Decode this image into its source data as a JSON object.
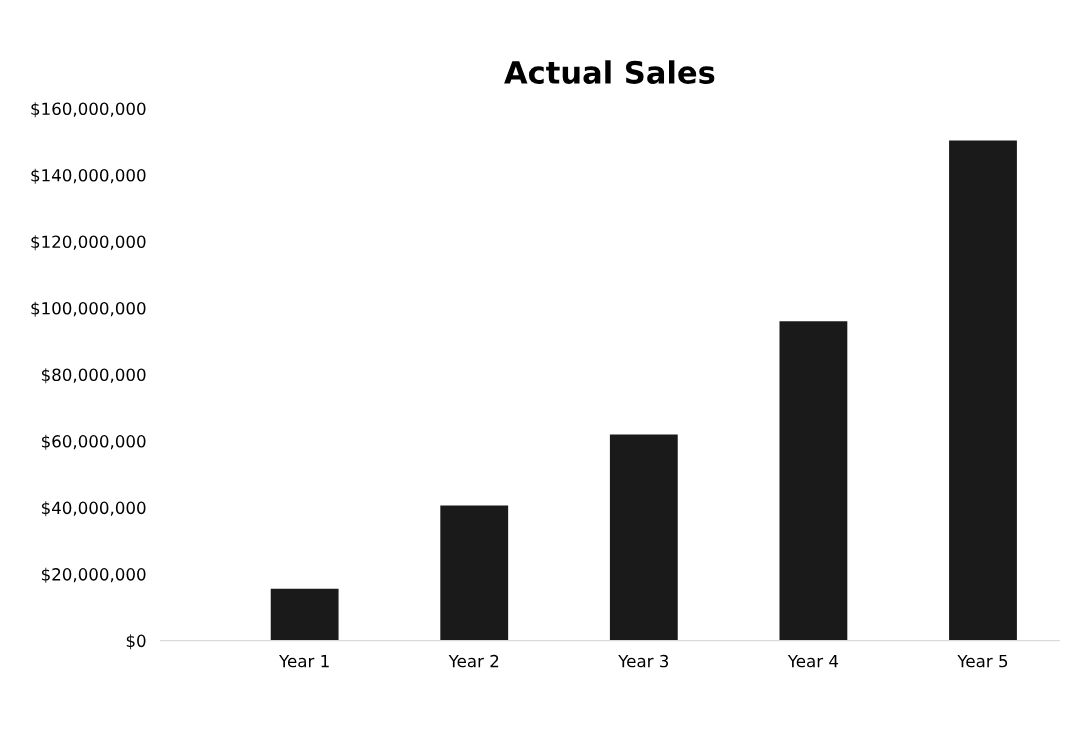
{
  "chart_data": {
    "type": "bar",
    "title": "Actual Sales",
    "categories": [
      "Year 1",
      "Year 2",
      "Year 3",
      "Year 4",
      "Year 5"
    ],
    "values": [
      15600000,
      40600000,
      62000000,
      96000000,
      150400000
    ],
    "color": "#1a1a1a",
    "ylim": [
      0,
      160000000
    ],
    "yticks": [
      {
        "value": 0,
        "label": "$0"
      },
      {
        "value": 20000000,
        "label": "$20,000,000"
      },
      {
        "value": 40000000,
        "label": "$40,000,000"
      },
      {
        "value": 60000000,
        "label": "$60,000,000"
      },
      {
        "value": 80000000,
        "label": "$80,000,000"
      },
      {
        "value": 100000000,
        "label": "$100,000,000"
      },
      {
        "value": 120000000,
        "label": "$120,000,000"
      },
      {
        "value": 140000000,
        "label": "$140,000,000"
      },
      {
        "value": 160000000,
        "label": "$160,000,000"
      }
    ],
    "grid": false,
    "legend": false
  }
}
